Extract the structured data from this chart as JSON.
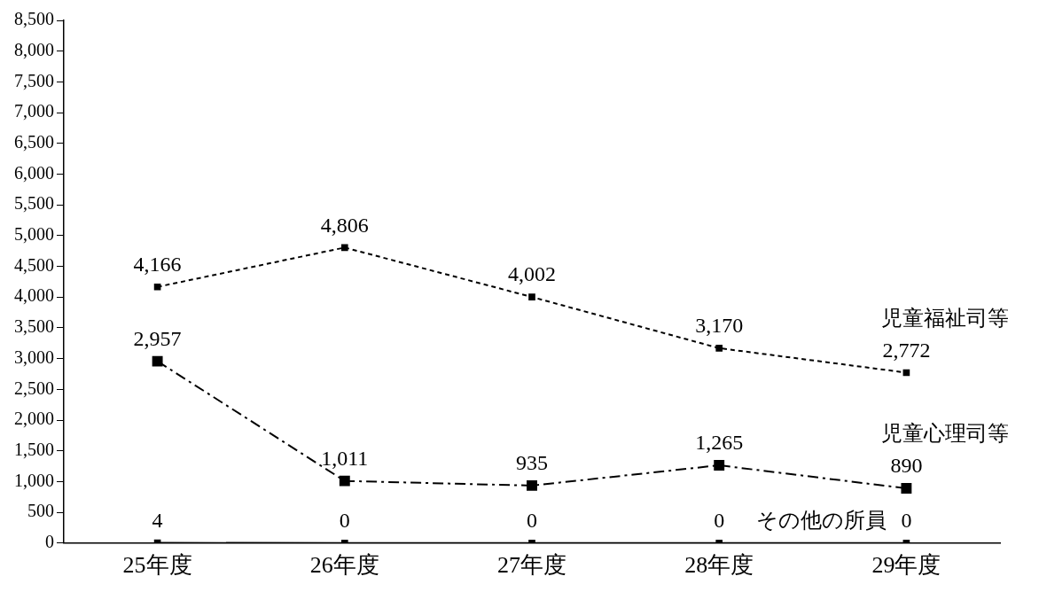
{
  "chart_data": {
    "type": "line",
    "categories": [
      "25年度",
      "26年度",
      "27年度",
      "28年度",
      "29年度"
    ],
    "series": [
      {
        "name": "児童福祉司等",
        "color": "#000000",
        "values": [
          4166,
          4806,
          4002,
          3170,
          2772
        ],
        "value_labels": [
          "4,166",
          "4,806",
          "4,002",
          "3,170",
          "2,772"
        ],
        "line_style": "dotted",
        "marker": "square"
      },
      {
        "name": "児童心理司等",
        "color": "#000000",
        "values": [
          2957,
          1011,
          935,
          1265,
          890
        ],
        "value_labels": [
          "2,957",
          "1,011",
          "935",
          "1,265",
          "890"
        ],
        "line_style": "dashed",
        "marker": "square"
      },
      {
        "name": "その他の所員",
        "color": "#000000",
        "values": [
          4,
          0,
          0,
          0,
          0
        ],
        "value_labels": [
          "4",
          "0",
          "0",
          "0",
          "0"
        ],
        "line_style": "solid",
        "marker": "square"
      }
    ],
    "ylim": [
      0,
      8500
    ],
    "yticks": [
      0,
      500,
      {
        "value": 1000,
        "label": "1,000"
      },
      {
        "value": 1500,
        "label": "1,500"
      },
      {
        "value": 2000,
        "label": "2,000"
      },
      {
        "value": 2500,
        "label": "2,500"
      },
      {
        "value": 3000,
        "label": "3,000"
      },
      {
        "value": 3500,
        "label": "3,500"
      },
      {
        "value": 4000,
        "label": "4,000"
      },
      {
        "value": 4500,
        "label": "4,500"
      },
      {
        "value": 5000,
        "label": "5,000"
      },
      {
        "value": 5500,
        "label": "5,500"
      },
      {
        "value": 6000,
        "label": "6,000"
      },
      {
        "value": 6500,
        "label": "6,500"
      },
      {
        "value": 7000,
        "label": "7,000"
      },
      {
        "value": 7500,
        "label": "7,500"
      },
      {
        "value": 8000,
        "label": "8,000"
      },
      {
        "value": 8500,
        "label": "8,500"
      }
    ],
    "grid": false,
    "legend": false
  }
}
